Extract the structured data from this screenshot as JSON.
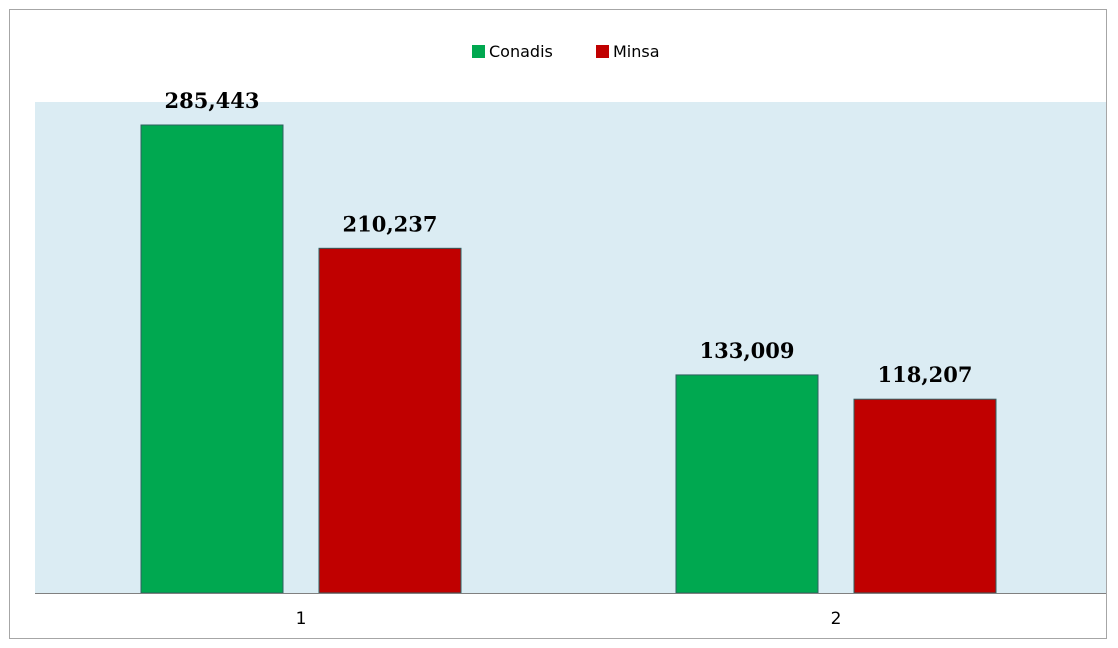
{
  "chart_data": {
    "type": "bar",
    "categories": [
      "1",
      "2"
    ],
    "series": [
      {
        "name": "Conadis",
        "color": "#00a850",
        "values": [
          285443,
          133009
        ],
        "labels": [
          "285,443",
          "133,009"
        ]
      },
      {
        "name": "Minsa",
        "color": "#c00000",
        "values": [
          210237,
          118207
        ],
        "labels": [
          "210,237",
          "118,207"
        ]
      }
    ],
    "title": "",
    "xlabel": "",
    "ylabel": "",
    "ylim": [
      0,
      300000
    ],
    "grid": false,
    "legend_position": "top-center",
    "plot_background": "#dbecf3"
  }
}
